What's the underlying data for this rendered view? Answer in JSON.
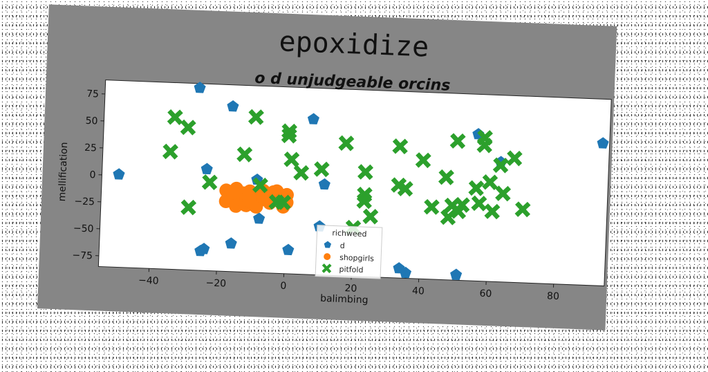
{
  "chart_data": {
    "type": "scatter",
    "title": "epoxidize",
    "subtitle": "o d unjudgeable orcins",
    "xlabel": "balimbing",
    "ylabel": "mellification",
    "xlim": [
      -55,
      95
    ],
    "ylim": [
      -85,
      88
    ],
    "xticks": [
      -40,
      -20,
      0,
      20,
      40,
      60,
      80
    ],
    "yticks": [
      -75,
      -50,
      -25,
      0,
      25,
      50,
      75
    ],
    "grid": false,
    "legend": {
      "title": "richweed",
      "placement": "bottom-center"
    },
    "series": [
      {
        "name": "d",
        "marker": "pentagon",
        "color": "#1f77b4",
        "points": [
          [
            -27,
            84
          ],
          [
            -17,
            68
          ],
          [
            7,
            59
          ],
          [
            56,
            51
          ],
          [
            93,
            47
          ],
          [
            -50,
            1
          ],
          [
            -24,
            9
          ],
          [
            -9,
            1
          ],
          [
            11,
            -1
          ],
          [
            63,
            26
          ],
          [
            -8,
            -35
          ],
          [
            10,
            -40
          ],
          [
            -16,
            -59
          ],
          [
            -24,
            -65
          ],
          [
            -25,
            -67
          ],
          [
            1,
            -63
          ],
          [
            34,
            -76
          ],
          [
            36,
            -80
          ],
          [
            51,
            -80
          ]
        ]
      },
      {
        "name": "shopgirls",
        "marker": "circle",
        "color": "#ff7f0e",
        "points": [
          [
            -18,
            -10
          ],
          [
            -17,
            -15
          ],
          [
            -16,
            -18
          ],
          [
            -15,
            -8
          ],
          [
            -14,
            -20
          ],
          [
            -13,
            -12
          ],
          [
            -12,
            -17
          ],
          [
            -11,
            -10
          ],
          [
            -10,
            -22
          ],
          [
            -9,
            -14
          ],
          [
            -8,
            -18
          ],
          [
            -7,
            -9
          ],
          [
            -6,
            -12
          ],
          [
            -5,
            -20
          ],
          [
            -4,
            -14
          ],
          [
            -3,
            -9
          ],
          [
            -2,
            -16
          ],
          [
            -1,
            -23
          ],
          [
            0,
            -19
          ],
          [
            0,
            -12
          ],
          [
            -18,
            -20
          ],
          [
            -15,
            -24
          ],
          [
            -12,
            -23
          ],
          [
            -9,
            -24
          ],
          [
            -16,
            -12
          ],
          [
            -11,
            -19
          ],
          [
            -7,
            -15
          ],
          [
            -4,
            -10
          ]
        ]
      },
      {
        "name": "pitfold",
        "marker": "x",
        "color": "#2ca02c",
        "points": [
          [
            -34,
            56
          ],
          [
            -30,
            47
          ],
          [
            -10,
            59
          ],
          [
            0,
            47
          ],
          [
            0,
            43
          ],
          [
            -35,
            24
          ],
          [
            -13,
            24
          ],
          [
            1,
            21
          ],
          [
            4,
            9
          ],
          [
            10,
            13
          ],
          [
            17,
            38
          ],
          [
            23,
            12
          ],
          [
            33,
            37
          ],
          [
            -23,
            -3
          ],
          [
            -29,
            -27
          ],
          [
            -8,
            -4
          ],
          [
            -3,
            -19
          ],
          [
            -1,
            -19
          ],
          [
            23,
            -9
          ],
          [
            23,
            -15
          ],
          [
            25,
            -29
          ],
          [
            33,
            1
          ],
          [
            35,
            -2
          ],
          [
            40,
            25
          ],
          [
            43,
            -18
          ],
          [
            47,
            10
          ],
          [
            49,
            -16
          ],
          [
            48,
            -27
          ],
          [
            51,
            -21
          ],
          [
            52,
            -15
          ],
          [
            50,
            44
          ],
          [
            58,
            48
          ],
          [
            58,
            41
          ],
          [
            63,
            23
          ],
          [
            64,
            -3
          ],
          [
            56,
            1
          ],
          [
            60,
            7
          ],
          [
            57,
            -13
          ],
          [
            61,
            -20
          ],
          [
            67,
            30
          ],
          [
            70,
            -17
          ],
          [
            58,
            48
          ],
          [
            20,
            -40
          ]
        ]
      }
    ]
  }
}
